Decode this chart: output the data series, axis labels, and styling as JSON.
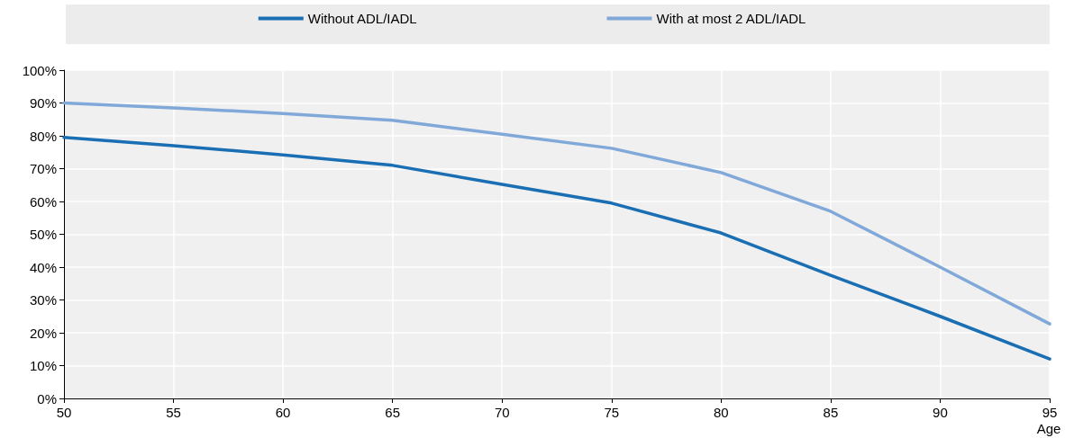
{
  "chart_data": {
    "type": "line",
    "xlabel": "Age",
    "x": [
      50,
      55,
      60,
      65,
      70,
      75,
      80,
      85,
      90,
      95
    ],
    "series": [
      {
        "name": "Without ADL/IADL",
        "color": "#1a6fb4",
        "values": [
          79.5,
          77,
          74.2,
          71,
          65.2,
          59.5,
          50.4,
          37.5,
          25,
          12
        ]
      },
      {
        "name": "With at most 2 ADL/IADL",
        "color": "#80a8d8",
        "values": [
          90,
          88.5,
          86.8,
          84.7,
          80.5,
          76.2,
          68.8,
          57,
          40,
          22.7
        ]
      }
    ],
    "xlim": [
      50,
      95
    ],
    "xticks": [
      50,
      55,
      60,
      65,
      70,
      75,
      80,
      85,
      90,
      95
    ],
    "ylim": [
      0,
      100
    ],
    "yticks": [
      {
        "value": 0,
        "label": "0%"
      },
      {
        "value": 10,
        "label": "10%"
      },
      {
        "value": 20,
        "label": "20%"
      },
      {
        "value": 30,
        "label": "30%"
      },
      {
        "value": 40,
        "label": "40%"
      },
      {
        "value": 50,
        "label": "50%"
      },
      {
        "value": 60,
        "label": "60%"
      },
      {
        "value": 70,
        "label": "70%"
      },
      {
        "value": 80,
        "label": "80%"
      },
      {
        "value": 90,
        "label": "90%"
      },
      {
        "value": 100,
        "label": "100%"
      }
    ],
    "grid": true,
    "legend": "top",
    "marker": "none",
    "line_style": "solid"
  }
}
